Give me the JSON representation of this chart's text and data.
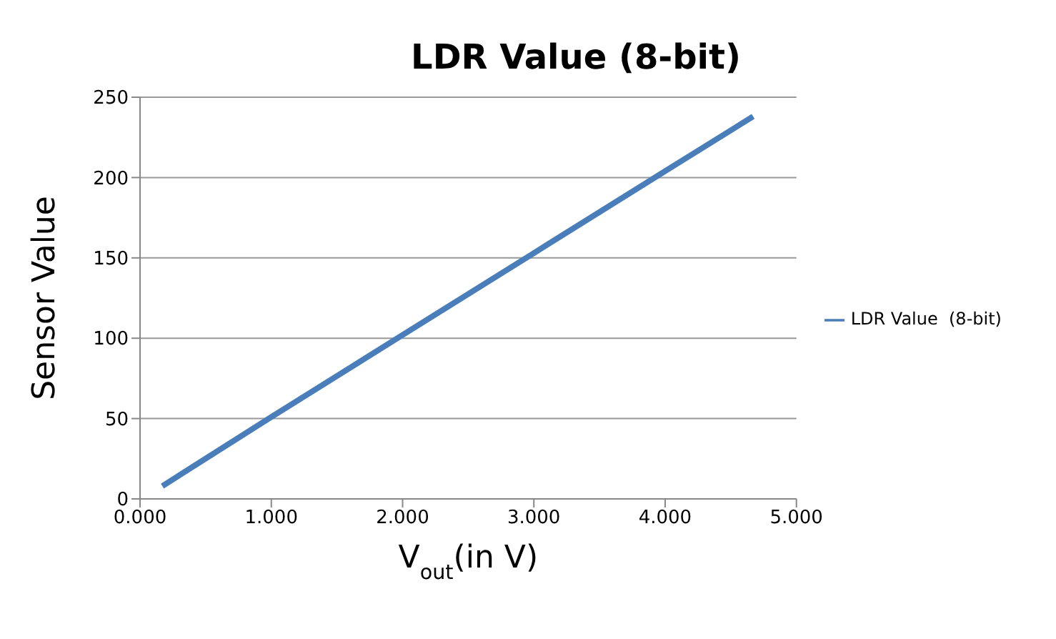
{
  "chart_data": {
    "type": "line",
    "title": "LDR Value (8-bit)",
    "xlabel": "V$_{out}$(in V)",
    "ylabel": "Sensor Value",
    "x": [
      0.17,
      1.0,
      2.0,
      3.0,
      4.0,
      4.67
    ],
    "series": [
      {
        "name": "LDR Value  (8-bit)",
        "color": "#4a7ebb",
        "values": [
          8,
          51,
          102,
          153,
          204,
          238
        ]
      }
    ],
    "xlim": [
      0,
      5
    ],
    "xticks": [
      {
        "value": 0,
        "label": "0.000"
      },
      {
        "value": 1,
        "label": "1.000"
      },
      {
        "value": 2,
        "label": "2.000"
      },
      {
        "value": 3,
        "label": "3.000"
      },
      {
        "value": 4,
        "label": "4.000"
      },
      {
        "value": 5,
        "label": "5.000"
      }
    ],
    "ylim": [
      0,
      250
    ],
    "yticks": [
      0,
      50,
      100,
      150,
      200,
      250
    ],
    "grid": "y",
    "legend": "right",
    "marker": "none",
    "line_style": "solid"
  }
}
